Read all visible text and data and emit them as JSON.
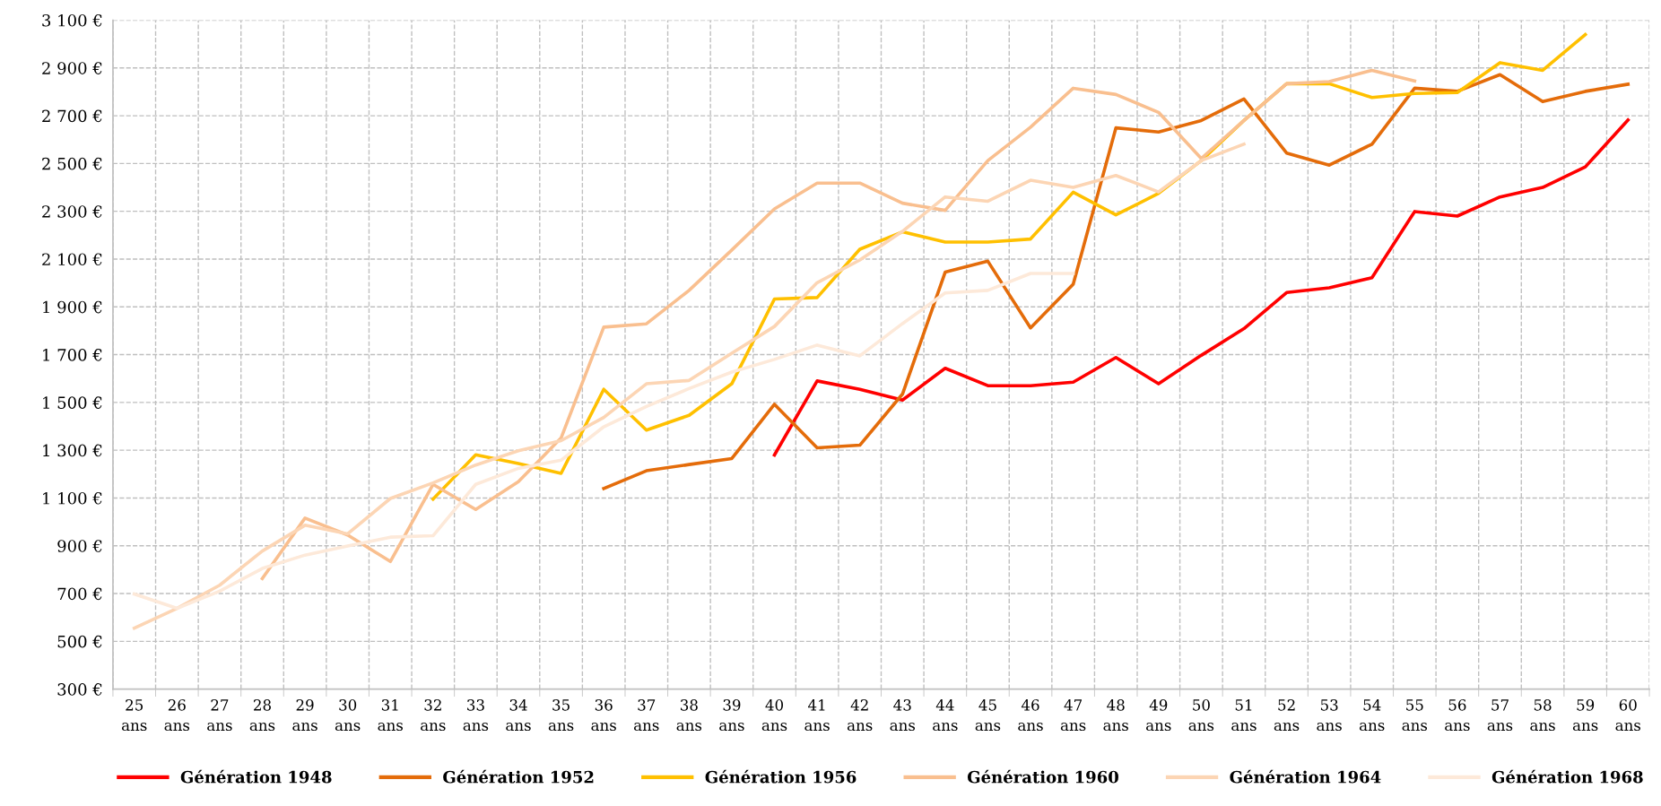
{
  "chart_data": {
    "type": "line",
    "categories": [
      "25\nans",
      "26\nans",
      "27\nans",
      "28\nans",
      "29\nans",
      "30\nans",
      "31\nans",
      "32\nans",
      "33\nans",
      "34\nans",
      "35\nans",
      "36\nans",
      "37\nans",
      "38\nans",
      "39\nans",
      "40\nans",
      "41\nans",
      "42\nans",
      "43\nans",
      "44\nans",
      "45\nans",
      "46\nans",
      "47\nans",
      "48\nans",
      "49\nans",
      "50\nans",
      "51\nans",
      "52\nans",
      "53\nans",
      "54\nans",
      "55\nans",
      "56\nans",
      "57\nans",
      "58\nans",
      "59\nans",
      "60\nans"
    ],
    "ylim": [
      300,
      3100
    ],
    "yticks": [
      {
        "value": 300,
        "label": "300 €"
      },
      {
        "value": 500,
        "label": "500 €"
      },
      {
        "value": 700,
        "label": "700 €"
      },
      {
        "value": 900,
        "label": "900 €"
      },
      {
        "value": 1100,
        "label": "1 100 €"
      },
      {
        "value": 1300,
        "label": "1 300 €"
      },
      {
        "value": 1500,
        "label": "1 500 €"
      },
      {
        "value": 1700,
        "label": "1 700 €"
      },
      {
        "value": 1900,
        "label": "1 900 €"
      },
      {
        "value": 2100,
        "label": "2 100 €"
      },
      {
        "value": 2300,
        "label": "2 300 €"
      },
      {
        "value": 2500,
        "label": "2 500 €"
      },
      {
        "value": 2700,
        "label": "2 700 €"
      },
      {
        "value": 2900,
        "label": "2 900 €"
      },
      {
        "value": 3100,
        "label": "3 100 €"
      }
    ],
    "grid": true,
    "legend": "bottom",
    "marker": "none",
    "line_style": "solid",
    "series": [
      {
        "name": "Génération 1948",
        "color": "#ff0000",
        "values": [
          null,
          null,
          null,
          null,
          null,
          null,
          null,
          null,
          null,
          null,
          null,
          null,
          null,
          null,
          null,
          1280,
          1590,
          1555,
          1510,
          1643,
          1570,
          1570,
          1585,
          1688,
          1578,
          1697,
          1809,
          1960,
          1980,
          2022,
          2299,
          2280,
          2360,
          2400,
          2486,
          2682
        ]
      },
      {
        "name": "Génération 1952",
        "color": "#e46c0a",
        "values": [
          null,
          null,
          null,
          null,
          null,
          null,
          null,
          null,
          null,
          null,
          null,
          1140,
          1214,
          1240,
          1265,
          1492,
          1310,
          1321,
          1535,
          2045,
          2091,
          1812,
          1995,
          2649,
          2632,
          2680,
          2770,
          2544,
          2493,
          2581,
          2815,
          2802,
          2872,
          2759,
          2802,
          2832
        ]
      },
      {
        "name": "Génération 1956",
        "color": "#ffc000",
        "values": [
          null,
          null,
          null,
          null,
          null,
          null,
          null,
          1095,
          1281,
          1244,
          1203,
          1555,
          1384,
          1446,
          1578,
          1933,
          1939,
          2141,
          2214,
          2171,
          2171,
          2184,
          2380,
          2285,
          2375,
          2512,
          2680,
          2834,
          2834,
          2776,
          2793,
          2797,
          2922,
          2890,
          3040,
          null
        ]
      },
      {
        "name": "Génération 1960",
        "color": "#f9bf8f",
        "values": [
          null,
          null,
          null,
          763,
          1016,
          945,
          834,
          1157,
          1052,
          1168,
          1351,
          1815,
          1829,
          1969,
          2138,
          2310,
          2418,
          2418,
          2334,
          2304,
          2512,
          2652,
          2815,
          2789,
          2714,
          2521,
          2680,
          2834,
          2843,
          2890,
          2845,
          null,
          null,
          null,
          null,
          null
        ]
      },
      {
        "name": "Génération 1964",
        "color": "#fcd5b4",
        "values": [
          555,
          638,
          735,
          878,
          986,
          950,
          1098,
          1163,
          1238,
          1298,
          1340,
          1437,
          1578,
          1592,
          1706,
          1818,
          2001,
          2096,
          2216,
          2360,
          2342,
          2430,
          2400,
          2450,
          2381,
          2512,
          2581,
          null,
          null,
          null,
          null,
          null,
          null,
          null,
          null,
          null
        ]
      },
      {
        "name": "Génération 1968",
        "color": "#fde9d9",
        "values": [
          698,
          638,
          710,
          805,
          861,
          899,
          936,
          942,
          1157,
          1224,
          1258,
          1398,
          1483,
          1558,
          1627,
          1680,
          1740,
          1695,
          1830,
          1958,
          1969,
          2040,
          2040,
          null,
          null,
          null,
          null,
          null,
          null,
          null,
          null,
          null,
          null,
          null,
          null,
          null
        ]
      }
    ]
  }
}
